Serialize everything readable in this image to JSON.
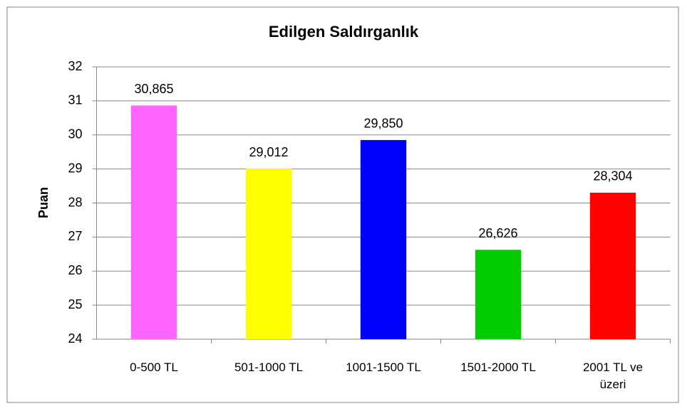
{
  "chart_data": {
    "type": "bar",
    "title": "Edilgen Saldırganlık",
    "y_label": "Puan",
    "categories": [
      "0-500 TL",
      "501-1000 TL",
      "1001-1500 TL",
      "1501-2000 TL",
      "2001 TL ve üzeri"
    ],
    "values": [
      30.865,
      29.012,
      29.85,
      26.626,
      28.304
    ],
    "value_labels": [
      "30,865",
      "29,012",
      "29,850",
      "26,626",
      "28,304"
    ],
    "colors": [
      "#ff66ff",
      "#ffff00",
      "#0000ff",
      "#00cc00",
      "#ff0000"
    ],
    "ylim": [
      24,
      32
    ],
    "yticks": [
      24,
      25,
      26,
      27,
      28,
      29,
      30,
      31,
      32
    ],
    "grid": true
  }
}
